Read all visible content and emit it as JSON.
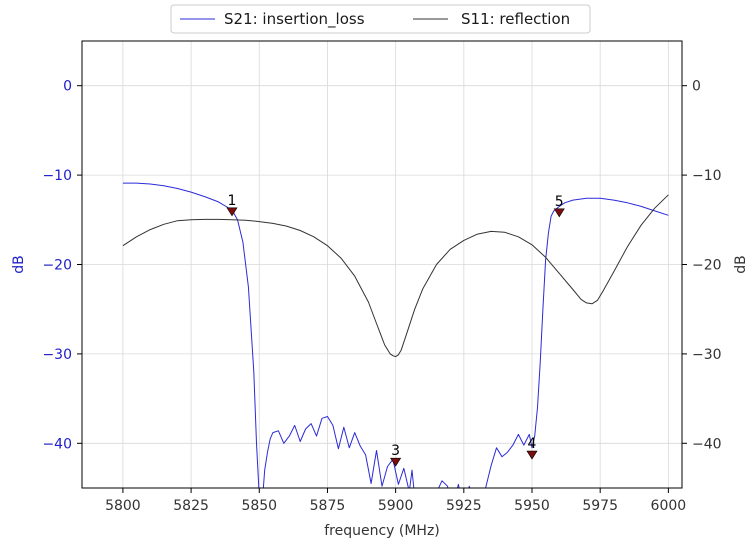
{
  "chart_data": {
    "type": "line",
    "xlabel": "frequency (MHz)",
    "ylabel_left": "dB",
    "ylabel_right": "dB",
    "xlim": [
      5785,
      6005
    ],
    "ylim": [
      -45,
      5
    ],
    "x_ticks": [
      5800,
      5825,
      5850,
      5875,
      5900,
      5925,
      5950,
      5975,
      6000
    ],
    "y_ticks": [
      0,
      -10,
      -20,
      -30,
      -40
    ],
    "grid": true,
    "legend_position": "top-center",
    "colors": {
      "s21": "#2b2bd9",
      "s11": "#333333",
      "left_axis": "#2020c8",
      "marker": "#7a0d0d"
    },
    "series": [
      {
        "name": "S21: insertion_loss",
        "axis": "left",
        "x": [
          5800,
          5805,
          5810,
          5815,
          5820,
          5825,
          5830,
          5835,
          5840,
          5842,
          5844,
          5846,
          5848,
          5849,
          5850,
          5851,
          5852,
          5853,
          5854,
          5855,
          5857,
          5859,
          5861,
          5863,
          5865,
          5867,
          5869,
          5871,
          5873,
          5875,
          5877,
          5879,
          5881,
          5883,
          5885,
          5887,
          5889,
          5891,
          5893,
          5895,
          5897,
          5899,
          5901,
          5903,
          5905,
          5906,
          5907,
          5909,
          5911,
          5913,
          5915,
          5917,
          5919,
          5921,
          5923,
          5925,
          5927,
          5929,
          5931,
          5933,
          5935,
          5937,
          5939,
          5941,
          5943,
          5945,
          5947,
          5949,
          5950,
          5951,
          5952,
          5953,
          5954,
          5955,
          5956,
          5957,
          5958,
          5960,
          5962,
          5965,
          5970,
          5975,
          5980,
          5985,
          5990,
          5995,
          6000
        ],
        "y": [
          -10.9,
          -10.9,
          -11.0,
          -11.2,
          -11.5,
          -11.9,
          -12.4,
          -13.0,
          -13.9,
          -15.0,
          -17.5,
          -22.5,
          -32.0,
          -40.0,
          -46.0,
          -47.0,
          -43.0,
          -41.0,
          -39.5,
          -38.8,
          -38.6,
          -40.0,
          -39.2,
          -38.0,
          -39.8,
          -38.4,
          -37.8,
          -39.2,
          -37.2,
          -37.0,
          -38.0,
          -40.6,
          -38.2,
          -40.5,
          -38.8,
          -40.3,
          -41.3,
          -44.5,
          -40.8,
          -44.8,
          -42.6,
          -41.8,
          -44.6,
          -42.8,
          -45.4,
          -43.0,
          -46.0,
          -47.0,
          -46.5,
          -47.0,
          -45.5,
          -44.2,
          -44.8,
          -47.0,
          -44.6,
          -47.5,
          -44.8,
          -47.0,
          -46.5,
          -45.0,
          -42.5,
          -40.5,
          -41.5,
          -41.0,
          -40.2,
          -39.0,
          -40.2,
          -39.0,
          -40.5,
          -39.2,
          -36.0,
          -31.0,
          -25.0,
          -19.5,
          -16.5,
          -14.6,
          -14.0,
          -13.5,
          -13.1,
          -12.8,
          -12.6,
          -12.6,
          -12.8,
          -13.1,
          -13.5,
          -14.0,
          -14.5
        ]
      },
      {
        "name": "S11: reflection",
        "axis": "right",
        "x": [
          5800,
          5805,
          5810,
          5815,
          5820,
          5825,
          5830,
          5835,
          5840,
          5845,
          5850,
          5855,
          5860,
          5865,
          5870,
          5875,
          5880,
          5885,
          5890,
          5893,
          5896,
          5898,
          5899,
          5900,
          5901,
          5902,
          5904,
          5907,
          5910,
          5915,
          5920,
          5925,
          5930,
          5935,
          5940,
          5945,
          5950,
          5955,
          5960,
          5965,
          5968,
          5970,
          5972,
          5974,
          5976,
          5980,
          5985,
          5990,
          5995,
          6000
        ],
        "y": [
          -17.9,
          -16.9,
          -16.1,
          -15.5,
          -15.1,
          -15.0,
          -14.95,
          -14.95,
          -15.0,
          -15.05,
          -15.2,
          -15.4,
          -15.7,
          -16.2,
          -16.9,
          -17.9,
          -19.3,
          -21.3,
          -24.2,
          -26.6,
          -29.0,
          -30.0,
          -30.2,
          -30.3,
          -30.1,
          -29.6,
          -27.8,
          -25.0,
          -22.7,
          -20.0,
          -18.3,
          -17.3,
          -16.6,
          -16.3,
          -16.4,
          -16.9,
          -17.8,
          -19.2,
          -21.0,
          -22.8,
          -23.9,
          -24.3,
          -24.4,
          -24.0,
          -23.0,
          -20.8,
          -18.0,
          -15.6,
          -13.7,
          -12.2
        ]
      }
    ],
    "markers": [
      {
        "label": "1",
        "x": 5840,
        "y": -14.0
      },
      {
        "label": "3",
        "x": 5900,
        "y": -42.0
      },
      {
        "label": "4",
        "x": 5950,
        "y": -41.2
      },
      {
        "label": "5",
        "x": 5960,
        "y": -14.1
      }
    ]
  }
}
